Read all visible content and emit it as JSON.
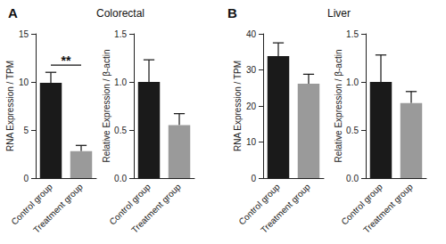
{
  "panels": [
    {
      "label": "A",
      "title": "Colorectal"
    },
    {
      "label": "B",
      "title": "Liver"
    }
  ],
  "chart_data": [
    {
      "type": "bar",
      "ylabel": "RNA Expression / TPM",
      "categories": [
        "Control group",
        "Treatment group"
      ],
      "values": [
        9.9,
        2.8
      ],
      "errors": [
        1.1,
        0.6
      ],
      "colors": [
        "#1a1a1a",
        "#9a9a9a"
      ],
      "ylim": [
        0,
        15
      ],
      "yticks": [
        0,
        5,
        10,
        15
      ],
      "grid": false,
      "annotations": [
        {
          "text": "**",
          "from": "Control group",
          "to": "Treatment group"
        }
      ]
    },
    {
      "type": "bar",
      "ylabel": "Relative Expression / β-actin",
      "categories": [
        "Control group",
        "Treatment group"
      ],
      "values": [
        1.0,
        0.55
      ],
      "errors": [
        0.23,
        0.12
      ],
      "colors": [
        "#1a1a1a",
        "#9a9a9a"
      ],
      "ylim": [
        0,
        1.5
      ],
      "yticks": [
        {
          "value": 0,
          "label": "0.0"
        },
        {
          "value": 0.5,
          "label": "0.5"
        },
        {
          "value": 1,
          "label": "1.0"
        },
        {
          "value": 1.5,
          "label": "1.5"
        }
      ],
      "grid": false
    },
    {
      "type": "bar",
      "ylabel": "RNA Expression / TPM",
      "categories": [
        "Control group",
        "Treatment group"
      ],
      "values": [
        33.8,
        26.2
      ],
      "errors": [
        3.7,
        2.6
      ],
      "colors": [
        "#1a1a1a",
        "#9a9a9a"
      ],
      "ylim": [
        0,
        40
      ],
      "yticks": [
        0,
        10,
        20,
        30,
        40
      ],
      "grid": false
    },
    {
      "type": "bar",
      "ylabel": "Relative Expression / β-actin",
      "categories": [
        "Control group",
        "Treatment group"
      ],
      "values": [
        1.0,
        0.78
      ],
      "errors": [
        0.28,
        0.12
      ],
      "colors": [
        "#1a1a1a",
        "#9a9a9a"
      ],
      "ylim": [
        0,
        1.5
      ],
      "yticks": [
        {
          "value": 0,
          "label": "0.0"
        },
        {
          "value": 0.5,
          "label": "0.5"
        },
        {
          "value": 1,
          "label": "1.0"
        },
        {
          "value": 1.5,
          "label": "1.5"
        }
      ],
      "grid": false
    }
  ]
}
